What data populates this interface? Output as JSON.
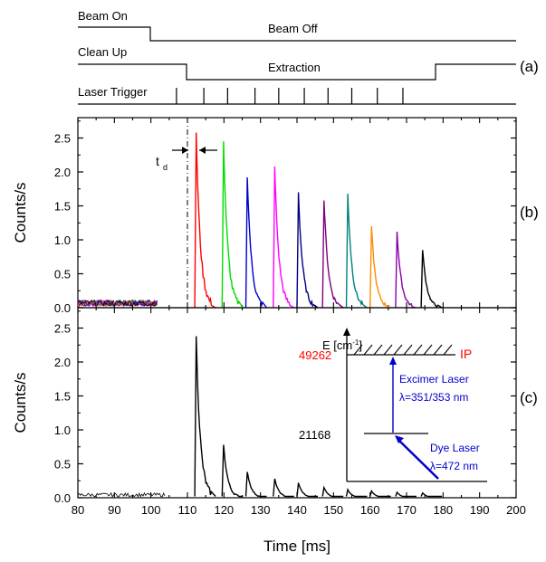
{
  "timing": {
    "row1": {
      "left_label": "Beam On",
      "right_label": "Beam Off"
    },
    "row2": {
      "left_label": "Clean Up",
      "right_label": "Extraction"
    },
    "row3": {
      "label": "Laser Trigger"
    },
    "panel_label": "(a)"
  },
  "colors": {
    "series": [
      "#ff0000",
      "#00dd00",
      "#0000cc",
      "#ff00ff",
      "#000080",
      "#800080",
      "#008080",
      "#ff8c00",
      "#8800aa",
      "#000000"
    ],
    "inset_text": "#0000cc",
    "ip_text": "#ff0000"
  },
  "chart_data": [
    {
      "type": "line",
      "panel_label": "(b)",
      "ylabel": "Counts/s",
      "xlim": [
        80,
        200
      ],
      "ylim": [
        0,
        2.8
      ],
      "yticks": [
        "0.0",
        "0.5",
        "1.0",
        "1.5",
        "2.0",
        "2.5"
      ],
      "annotation": "t",
      "annotation_sub": "d",
      "marker_x": 110,
      "background": {
        "x_start": 80,
        "x_end": 102,
        "level": 0.08
      },
      "peaks": [
        {
          "x": 113,
          "value": 2.58
        },
        {
          "x": 120.5,
          "value": 2.45
        },
        {
          "x": 127,
          "value": 1.92
        },
        {
          "x": 134.5,
          "value": 2.08
        },
        {
          "x": 141,
          "value": 1.7
        },
        {
          "x": 148,
          "value": 1.58
        },
        {
          "x": 154.5,
          "value": 1.68
        },
        {
          "x": 161,
          "value": 1.2
        },
        {
          "x": 168,
          "value": 1.12
        },
        {
          "x": 175,
          "value": 0.85
        }
      ]
    },
    {
      "type": "line",
      "panel_label": "(c)",
      "ylabel": "Counts/s",
      "xlabel": "Time [ms]",
      "xlim": [
        80,
        200
      ],
      "ylim": [
        0,
        2.8
      ],
      "xticks": [
        "80",
        "90",
        "100",
        "110",
        "120",
        "130",
        "140",
        "150",
        "160",
        "170",
        "180",
        "190",
        "200"
      ],
      "yticks": [
        "0.0",
        "0.5",
        "1.0",
        "1.5",
        "2.0",
        "2.5"
      ],
      "background": {
        "x_start": 80,
        "x_end": 104,
        "level": 0.05
      },
      "peaks": [
        {
          "x": 113,
          "value": 2.38
        },
        {
          "x": 120.5,
          "value": 0.78
        },
        {
          "x": 127,
          "value": 0.38
        },
        {
          "x": 134.5,
          "value": 0.28
        },
        {
          "x": 141,
          "value": 0.22
        },
        {
          "x": 148,
          "value": 0.15
        },
        {
          "x": 154.5,
          "value": 0.12
        },
        {
          "x": 161,
          "value": 0.1
        },
        {
          "x": 168,
          "value": 0.08
        },
        {
          "x": 175,
          "value": 0.07
        }
      ]
    }
  ],
  "inset": {
    "axis_label": "E [cm",
    "axis_sup": "-1",
    "axis_close": "]",
    "ip_energy": "49262",
    "ip_label": "IP",
    "mid_energy": "21168",
    "excimer_line1": "Excimer Laser",
    "excimer_line2": "λ=351/353 nm",
    "dye_line1": "Dye Laser",
    "dye_line2": "λ=472 nm"
  }
}
